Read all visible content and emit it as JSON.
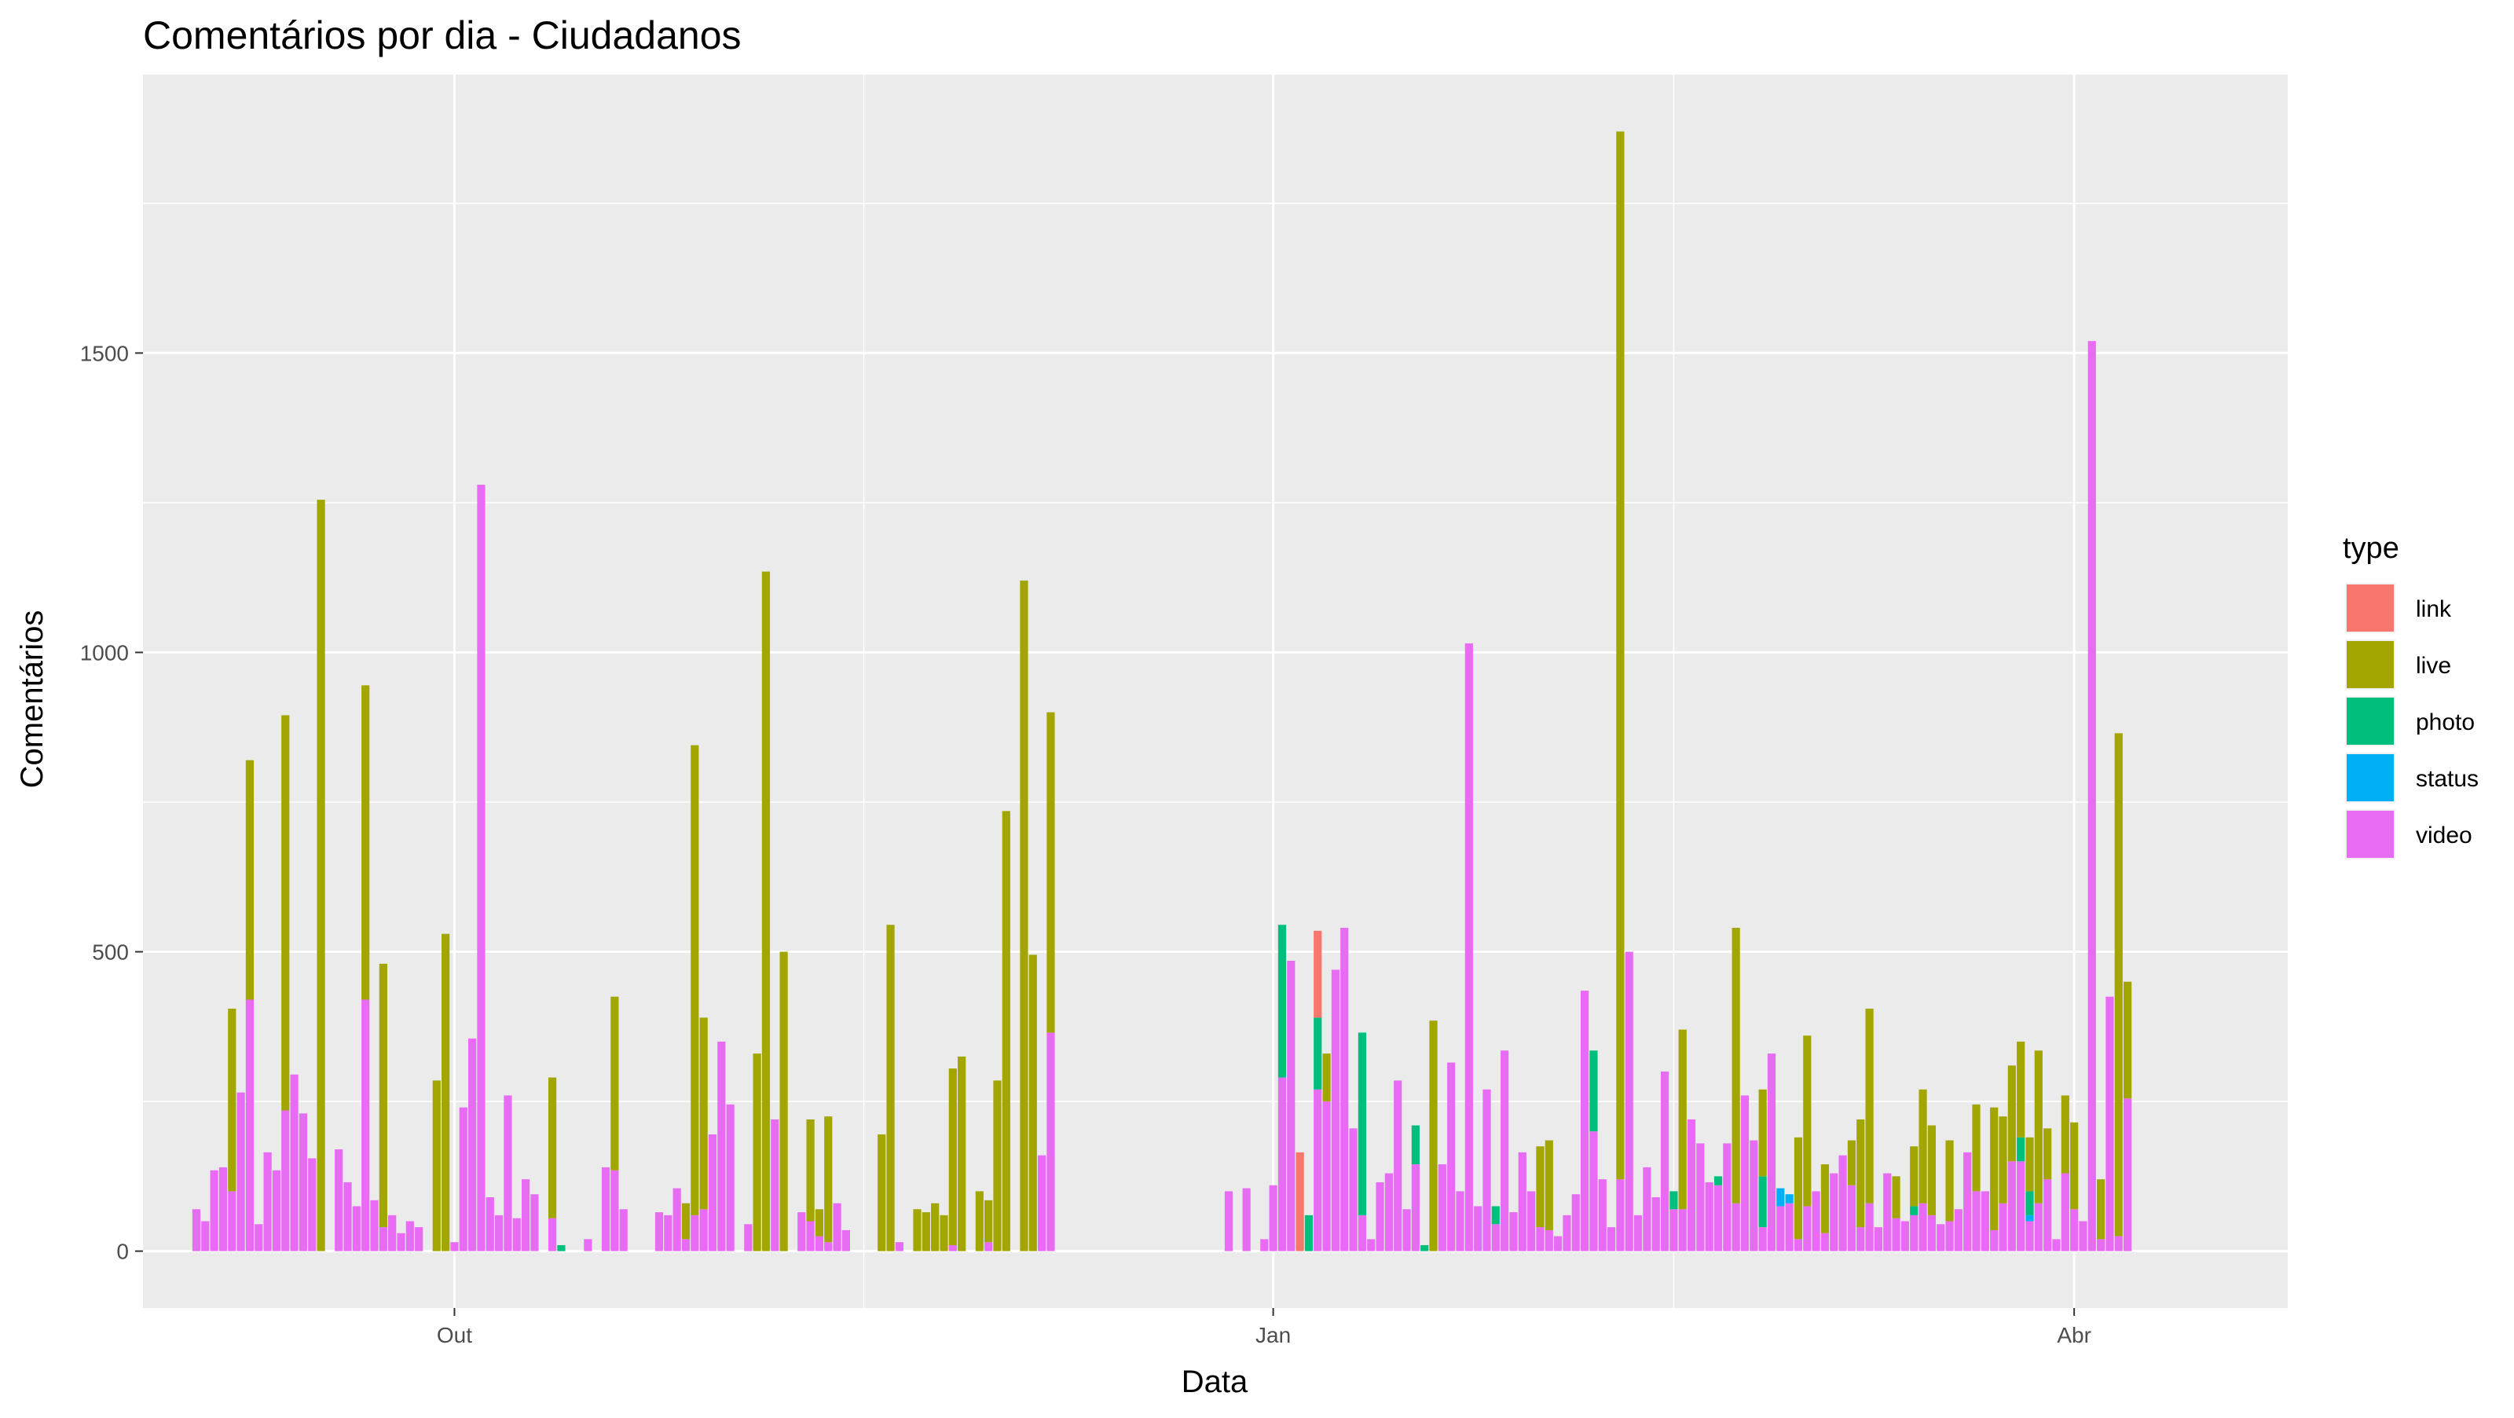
{
  "chart_data": {
    "type": "bar",
    "stacked": true,
    "title": "Comentários por dia - Ciudadanos",
    "xlabel": "Data",
    "ylabel": "Comentários",
    "x_axis": {
      "type": "date",
      "range": [
        "2017-08-27",
        "2018-04-25"
      ],
      "ticks": [
        {
          "date": "2017-10-01",
          "label": "Out"
        },
        {
          "date": "2018-01-01",
          "label": "Jan"
        },
        {
          "date": "2018-04-01",
          "label": "Abr"
        }
      ],
      "minor_grid": [
        "2017-11-16",
        "2018-02-15"
      ]
    },
    "y_axis": {
      "range": [
        -95,
        1965
      ],
      "ticks": [
        0,
        500,
        1000,
        1500
      ],
      "minor_grid": [
        250,
        750,
        1250,
        1750
      ]
    },
    "grid": true,
    "legend": {
      "title": "type",
      "position": "right",
      "entries": [
        {
          "name": "link",
          "color": "#F8766D"
        },
        {
          "name": "live",
          "color": "#A3A500"
        },
        {
          "name": "photo",
          "color": "#00BF7D"
        },
        {
          "name": "status",
          "color": "#00B0F6"
        },
        {
          "name": "video",
          "color": "#E76BF3"
        }
      ]
    },
    "colors": {
      "link": "#F8766D",
      "live": "#A3A500",
      "photo": "#00BF7D",
      "status": "#00B0F6",
      "video": "#E76BF3",
      "panel": "#EBEBEB",
      "grid": "#FFFFFF"
    },
    "series": [
      "link",
      "live",
      "photo",
      "status",
      "video"
    ],
    "data": [
      {
        "date": "2017-09-02",
        "video": 70
      },
      {
        "date": "2017-09-03",
        "video": 50
      },
      {
        "date": "2017-09-04",
        "video": 135
      },
      {
        "date": "2017-09-05",
        "video": 140
      },
      {
        "date": "2017-09-06",
        "video": 100,
        "live": 305
      },
      {
        "date": "2017-09-07",
        "video": 265
      },
      {
        "date": "2017-09-08",
        "video": 420,
        "live": 400
      },
      {
        "date": "2017-09-09",
        "video": 45
      },
      {
        "date": "2017-09-10",
        "video": 165
      },
      {
        "date": "2017-09-11",
        "video": 135
      },
      {
        "date": "2017-09-12",
        "video": 235,
        "live": 660
      },
      {
        "date": "2017-09-13",
        "video": 295
      },
      {
        "date": "2017-09-14",
        "video": 230
      },
      {
        "date": "2017-09-15",
        "video": 155
      },
      {
        "date": "2017-09-16",
        "live": 1255
      },
      {
        "date": "2017-09-18",
        "video": 170
      },
      {
        "date": "2017-09-19",
        "video": 115
      },
      {
        "date": "2017-09-20",
        "video": 75
      },
      {
        "date": "2017-09-21",
        "video": 420,
        "live": 525
      },
      {
        "date": "2017-09-22",
        "video": 85
      },
      {
        "date": "2017-09-23",
        "video": 40,
        "live": 440
      },
      {
        "date": "2017-09-24",
        "video": 60
      },
      {
        "date": "2017-09-25",
        "video": 30
      },
      {
        "date": "2017-09-26",
        "video": 50
      },
      {
        "date": "2017-09-27",
        "video": 40
      },
      {
        "date": "2017-09-29",
        "live": 285
      },
      {
        "date": "2017-09-30",
        "live": 530
      },
      {
        "date": "2017-10-01",
        "video": 15
      },
      {
        "date": "2017-10-02",
        "video": 240
      },
      {
        "date": "2017-10-03",
        "video": 355
      },
      {
        "date": "2017-10-04",
        "video": 1280
      },
      {
        "date": "2017-10-05",
        "video": 90
      },
      {
        "date": "2017-10-06",
        "video": 60
      },
      {
        "date": "2017-10-07",
        "video": 260
      },
      {
        "date": "2017-10-08",
        "video": 55
      },
      {
        "date": "2017-10-09",
        "video": 120
      },
      {
        "date": "2017-10-10",
        "video": 95
      },
      {
        "date": "2017-10-12",
        "video": 55,
        "live": 235
      },
      {
        "date": "2017-10-13",
        "photo": 10
      },
      {
        "date": "2017-10-16",
        "video": 20
      },
      {
        "date": "2017-10-18",
        "video": 140
      },
      {
        "date": "2017-10-19",
        "video": 135,
        "live": 290
      },
      {
        "date": "2017-10-20",
        "video": 70
      },
      {
        "date": "2017-10-24",
        "video": 65
      },
      {
        "date": "2017-10-25",
        "video": 60
      },
      {
        "date": "2017-10-26",
        "video": 105
      },
      {
        "date": "2017-10-27",
        "video": 20,
        "live": 60
      },
      {
        "date": "2017-10-28",
        "video": 60,
        "live": 785
      },
      {
        "date": "2017-10-29",
        "video": 70,
        "live": 320
      },
      {
        "date": "2017-10-30",
        "video": 195
      },
      {
        "date": "2017-10-31",
        "video": 350
      },
      {
        "date": "2017-11-01",
        "video": 245
      },
      {
        "date": "2017-11-03",
        "video": 45
      },
      {
        "date": "2017-11-04",
        "live": 330
      },
      {
        "date": "2017-11-05",
        "live": 1135
      },
      {
        "date": "2017-11-06",
        "video": 220
      },
      {
        "date": "2017-11-07",
        "live": 500
      },
      {
        "date": "2017-11-09",
        "video": 65
      },
      {
        "date": "2017-11-10",
        "video": 50,
        "live": 170
      },
      {
        "date": "2017-11-11",
        "video": 25,
        "live": 45
      },
      {
        "date": "2017-11-12",
        "video": 15,
        "live": 210
      },
      {
        "date": "2017-11-13",
        "video": 80
      },
      {
        "date": "2017-11-14",
        "video": 35
      },
      {
        "date": "2017-11-18",
        "live": 195
      },
      {
        "date": "2017-11-19",
        "live": 545
      },
      {
        "date": "2017-11-20",
        "video": 15
      },
      {
        "date": "2017-11-22",
        "live": 70
      },
      {
        "date": "2017-11-23",
        "live": 65
      },
      {
        "date": "2017-11-24",
        "live": 80
      },
      {
        "date": "2017-11-25",
        "live": 60
      },
      {
        "date": "2017-11-26",
        "video": 10,
        "live": 295
      },
      {
        "date": "2017-11-27",
        "live": 325
      },
      {
        "date": "2017-11-29",
        "live": 100
      },
      {
        "date": "2017-11-30",
        "video": 15,
        "live": 70
      },
      {
        "date": "2017-12-01",
        "live": 285
      },
      {
        "date": "2017-12-02",
        "live": 735
      },
      {
        "date": "2017-12-04",
        "live": 1120
      },
      {
        "date": "2017-12-05",
        "live": 495
      },
      {
        "date": "2017-12-06",
        "video": 160
      },
      {
        "date": "2017-12-07",
        "video": 365,
        "live": 535
      },
      {
        "date": "2017-12-27",
        "video": 100
      },
      {
        "date": "2017-12-29",
        "video": 105
      },
      {
        "date": "2017-12-31",
        "video": 20
      },
      {
        "date": "2018-01-01",
        "video": 110
      },
      {
        "date": "2018-01-02",
        "video": 290,
        "photo": 255
      },
      {
        "date": "2018-01-03",
        "video": 485
      },
      {
        "date": "2018-01-04",
        "link": 165
      },
      {
        "date": "2018-01-05",
        "photo": 60
      },
      {
        "date": "2018-01-06",
        "video": 270,
        "photo": 120,
        "link": 145
      },
      {
        "date": "2018-01-07",
        "video": 250,
        "live": 80
      },
      {
        "date": "2018-01-08",
        "video": 470
      },
      {
        "date": "2018-01-09",
        "video": 540
      },
      {
        "date": "2018-01-10",
        "video": 205
      },
      {
        "date": "2018-01-11",
        "video": 60,
        "photo": 305
      },
      {
        "date": "2018-01-12",
        "video": 20
      },
      {
        "date": "2018-01-13",
        "video": 115
      },
      {
        "date": "2018-01-14",
        "video": 130
      },
      {
        "date": "2018-01-15",
        "video": 285
      },
      {
        "date": "2018-01-16",
        "video": 70
      },
      {
        "date": "2018-01-17",
        "video": 145,
        "photo": 65
      },
      {
        "date": "2018-01-18",
        "photo": 10
      },
      {
        "date": "2018-01-19",
        "live": 385
      },
      {
        "date": "2018-01-20",
        "video": 145
      },
      {
        "date": "2018-01-21",
        "video": 315
      },
      {
        "date": "2018-01-22",
        "video": 100
      },
      {
        "date": "2018-01-23",
        "video": 1015
      },
      {
        "date": "2018-01-24",
        "video": 75
      },
      {
        "date": "2018-01-25",
        "video": 270
      },
      {
        "date": "2018-01-26",
        "video": 45,
        "photo": 30
      },
      {
        "date": "2018-01-27",
        "video": 335
      },
      {
        "date": "2018-01-28",
        "video": 65
      },
      {
        "date": "2018-01-29",
        "video": 165
      },
      {
        "date": "2018-01-30",
        "video": 100
      },
      {
        "date": "2018-01-31",
        "video": 40,
        "live": 135
      },
      {
        "date": "2018-02-01",
        "video": 35,
        "live": 150
      },
      {
        "date": "2018-02-02",
        "video": 25
      },
      {
        "date": "2018-02-03",
        "video": 60
      },
      {
        "date": "2018-02-04",
        "video": 95
      },
      {
        "date": "2018-02-05",
        "video": 435
      },
      {
        "date": "2018-02-06",
        "video": 200,
        "photo": 135
      },
      {
        "date": "2018-02-07",
        "video": 120
      },
      {
        "date": "2018-02-08",
        "video": 40
      },
      {
        "date": "2018-02-09",
        "video": 120,
        "live": 1750
      },
      {
        "date": "2018-02-10",
        "video": 500
      },
      {
        "date": "2018-02-11",
        "video": 60
      },
      {
        "date": "2018-02-12",
        "video": 140
      },
      {
        "date": "2018-02-13",
        "video": 90
      },
      {
        "date": "2018-02-14",
        "video": 300
      },
      {
        "date": "2018-02-15",
        "video": 70,
        "photo": 30
      },
      {
        "date": "2018-02-16",
        "video": 70,
        "live": 300
      },
      {
        "date": "2018-02-17",
        "video": 220
      },
      {
        "date": "2018-02-18",
        "video": 180
      },
      {
        "date": "2018-02-19",
        "video": 115
      },
      {
        "date": "2018-02-20",
        "video": 110,
        "photo": 15
      },
      {
        "date": "2018-02-21",
        "video": 180
      },
      {
        "date": "2018-02-22",
        "video": 80,
        "live": 460
      },
      {
        "date": "2018-02-23",
        "video": 260
      },
      {
        "date": "2018-02-24",
        "video": 185
      },
      {
        "date": "2018-02-25",
        "video": 40,
        "photo": 85,
        "live": 145
      },
      {
        "date": "2018-02-26",
        "video": 330
      },
      {
        "date": "2018-02-27",
        "video": 75,
        "status": 30
      },
      {
        "date": "2018-02-28",
        "video": 80,
        "status": 15
      },
      {
        "date": "2018-03-01",
        "video": 20,
        "live": 170
      },
      {
        "date": "2018-03-02",
        "video": 75,
        "live": 285
      },
      {
        "date": "2018-03-03",
        "video": 100
      },
      {
        "date": "2018-03-04",
        "video": 30,
        "live": 115
      },
      {
        "date": "2018-03-05",
        "video": 130
      },
      {
        "date": "2018-03-06",
        "video": 160
      },
      {
        "date": "2018-03-07",
        "video": 110,
        "live": 75
      },
      {
        "date": "2018-03-08",
        "video": 40,
        "live": 180
      },
      {
        "date": "2018-03-09",
        "video": 80,
        "live": 325
      },
      {
        "date": "2018-03-10",
        "video": 40
      },
      {
        "date": "2018-03-11",
        "video": 130
      },
      {
        "date": "2018-03-12",
        "video": 55,
        "live": 70
      },
      {
        "date": "2018-03-13",
        "video": 50
      },
      {
        "date": "2018-03-14",
        "video": 60,
        "photo": 15,
        "live": 100
      },
      {
        "date": "2018-03-15",
        "video": 80,
        "live": 190
      },
      {
        "date": "2018-03-16",
        "video": 60,
        "live": 150
      },
      {
        "date": "2018-03-17",
        "video": 45
      },
      {
        "date": "2018-03-18",
        "video": 50,
        "live": 135
      },
      {
        "date": "2018-03-19",
        "video": 70
      },
      {
        "date": "2018-03-20",
        "video": 165
      },
      {
        "date": "2018-03-21",
        "video": 100,
        "live": 145
      },
      {
        "date": "2018-03-22",
        "video": 100
      },
      {
        "date": "2018-03-23",
        "video": 35,
        "live": 205
      },
      {
        "date": "2018-03-24",
        "video": 80,
        "live": 145
      },
      {
        "date": "2018-03-25",
        "video": 150,
        "live": 160
      },
      {
        "date": "2018-03-26",
        "video": 150,
        "photo": 40,
        "live": 160
      },
      {
        "date": "2018-03-27",
        "video": 50,
        "photo": 40,
        "status": 10,
        "live": 90
      },
      {
        "date": "2018-03-28",
        "video": 80,
        "live": 255
      },
      {
        "date": "2018-03-29",
        "video": 120,
        "live": 85
      },
      {
        "date": "2018-03-30",
        "video": 20
      },
      {
        "date": "2018-03-31",
        "video": 130,
        "live": 130
      },
      {
        "date": "2018-04-01",
        "video": 70,
        "live": 145
      },
      {
        "date": "2018-04-02",
        "video": 50
      },
      {
        "date": "2018-04-03",
        "video": 1520
      },
      {
        "date": "2018-04-04",
        "video": 20,
        "live": 100
      },
      {
        "date": "2018-04-05",
        "video": 425
      },
      {
        "date": "2018-04-06",
        "video": 25,
        "live": 840
      },
      {
        "date": "2018-04-07",
        "video": 255,
        "live": 195
      }
    ]
  }
}
